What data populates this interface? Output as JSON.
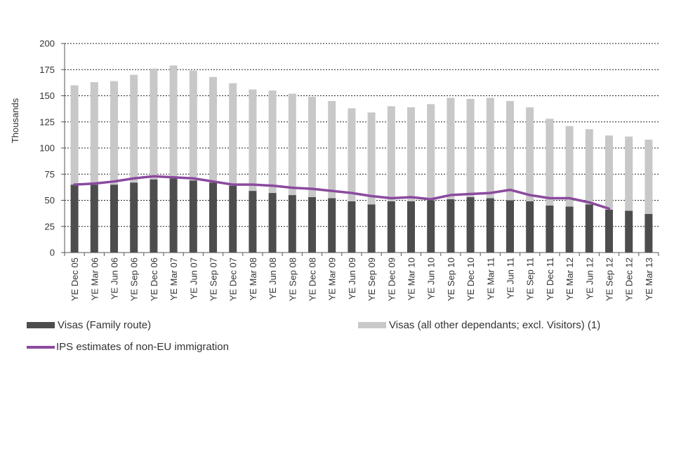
{
  "chart_data": {
    "type": "bar",
    "title": "",
    "ylabel": "Thousands",
    "xlabel": "",
    "ylim": [
      0,
      200
    ],
    "yticks": [
      0,
      25,
      50,
      75,
      100,
      125,
      150,
      175,
      200
    ],
    "grid": true,
    "legend_position": "bottom",
    "stacked": true,
    "categories": [
      "YE Dec 05",
      "YE Mar 06",
      "YE Jun 06",
      "YE Sep 06",
      "YE Dec 06",
      "YE Mar 07",
      "YE Jun 07",
      "YE Sep 07",
      "YE Dec 07",
      "YE Mar 08",
      "YE Jun 08",
      "YE Sep 08",
      "YE Dec 08",
      "YE Mar 09",
      "YE Jun 09",
      "YE Sep 09",
      "YE Dec 09",
      "YE Mar 10",
      "YE Jun 10",
      "YE Sep 10",
      "YE Dec 10",
      "YE Mar 11",
      "YE Jun 11",
      "YE Sep 11",
      "YE Dec 11",
      "YE Mar 12",
      "YE Jun 12",
      "YE Sep 12",
      "YE Dec 12",
      "YE Mar 13"
    ],
    "series": [
      {
        "name": "Visas (Family route)",
        "type": "bar",
        "color": "#4d4d4d",
        "values": [
          65,
          65,
          65,
          67,
          70,
          71,
          69,
          67,
          64,
          59,
          57,
          55,
          53,
          52,
          49,
          46,
          49,
          49,
          50,
          51,
          53,
          52,
          50,
          49,
          45,
          44,
          46,
          41,
          40,
          37
        ]
      },
      {
        "name": "Visas (all other dependants; excl. Visitors) (1)",
        "type": "bar",
        "color": "#c8c8c8",
        "values": [
          95,
          98,
          99,
          103,
          106,
          108,
          105,
          101,
          98,
          97,
          98,
          97,
          96,
          93,
          89,
          88,
          91,
          90,
          92,
          97,
          94,
          96,
          95,
          90,
          83,
          77,
          72,
          71,
          71,
          71
        ]
      },
      {
        "name": "IPS estimates of non-EU immigration",
        "type": "line",
        "color": "#8b4a9e",
        "values": [
          65,
          66,
          68,
          71,
          73,
          72,
          71,
          68,
          65,
          65,
          64,
          62,
          61,
          59,
          57,
          54,
          52,
          53,
          51,
          55,
          56,
          57,
          60,
          55,
          52,
          52,
          48,
          42,
          null,
          null
        ]
      }
    ]
  }
}
